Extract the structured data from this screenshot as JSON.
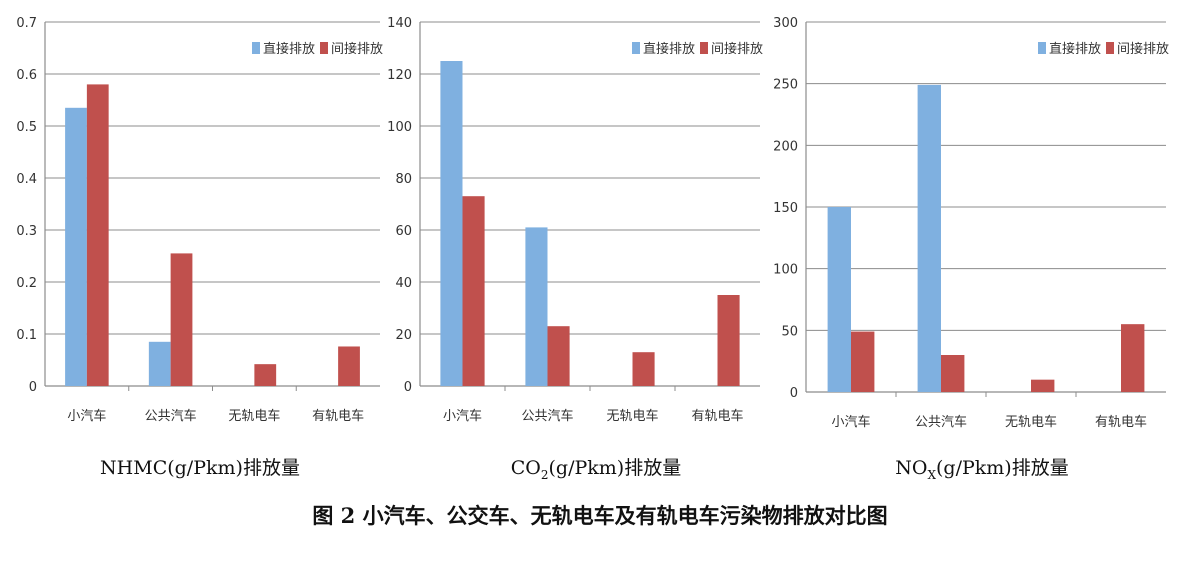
{
  "caption": "图 2  小汽车、公交车、无轨电车及有轨电车污染物排放对比图",
  "colors": {
    "direct": "#7fb0e0",
    "indirect": "#c0504d",
    "grid": "#8c8c8c",
    "axis": "#8c8c8c",
    "text": "#333333"
  },
  "chart_data": [
    {
      "type": "bar",
      "categories": [
        "小汽车",
        "公共汽车",
        "无轨电车",
        "有轨电车"
      ],
      "series": [
        {
          "name": "直接排放",
          "values": [
            0.535,
            0.085,
            0,
            0
          ]
        },
        {
          "name": "间接排放",
          "values": [
            0.58,
            0.255,
            0.042,
            0.076
          ]
        }
      ],
      "xlabel": {
        "pre": "NHMC",
        "sub": "",
        "post": "(g/Pkm)排放量"
      },
      "ylim": [
        0,
        0.7
      ],
      "yticks": [
        "0",
        "0.1",
        "0.2",
        "0.3",
        "0.4",
        "0.5",
        "0.6",
        "0.7"
      ],
      "grid": true,
      "legend": "top-right"
    },
    {
      "type": "bar",
      "categories": [
        "小汽车",
        "公共汽车",
        "无轨电车",
        "有轨电车"
      ],
      "series": [
        {
          "name": "直接排放",
          "values": [
            125,
            61,
            0,
            0
          ]
        },
        {
          "name": "间接排放",
          "values": [
            73,
            23,
            13,
            35
          ]
        }
      ],
      "xlabel": {
        "pre": "CO",
        "sub": "2",
        "post": "(g/Pkm)排放量"
      },
      "ylim": [
        0,
        140
      ],
      "yticks": [
        "0",
        "20",
        "40",
        "60",
        "80",
        "100",
        "120",
        "140"
      ],
      "grid": true,
      "legend": "top-right"
    },
    {
      "type": "bar",
      "categories": [
        "小汽车",
        "公共汽车",
        "无轨电车",
        "有轨电车"
      ],
      "series": [
        {
          "name": "直接排放",
          "values": [
            150,
            249,
            0,
            0
          ]
        },
        {
          "name": "间接排放",
          "values": [
            49,
            30,
            10,
            55
          ]
        }
      ],
      "xlabel": {
        "pre": "NO",
        "sub": "X",
        "post": "(g/Pkm)排放量"
      },
      "ylim": [
        0,
        300
      ],
      "yticks": [
        "0",
        "50",
        "100",
        "150",
        "200",
        "250",
        "300"
      ],
      "grid": true,
      "legend": "top-right"
    }
  ]
}
